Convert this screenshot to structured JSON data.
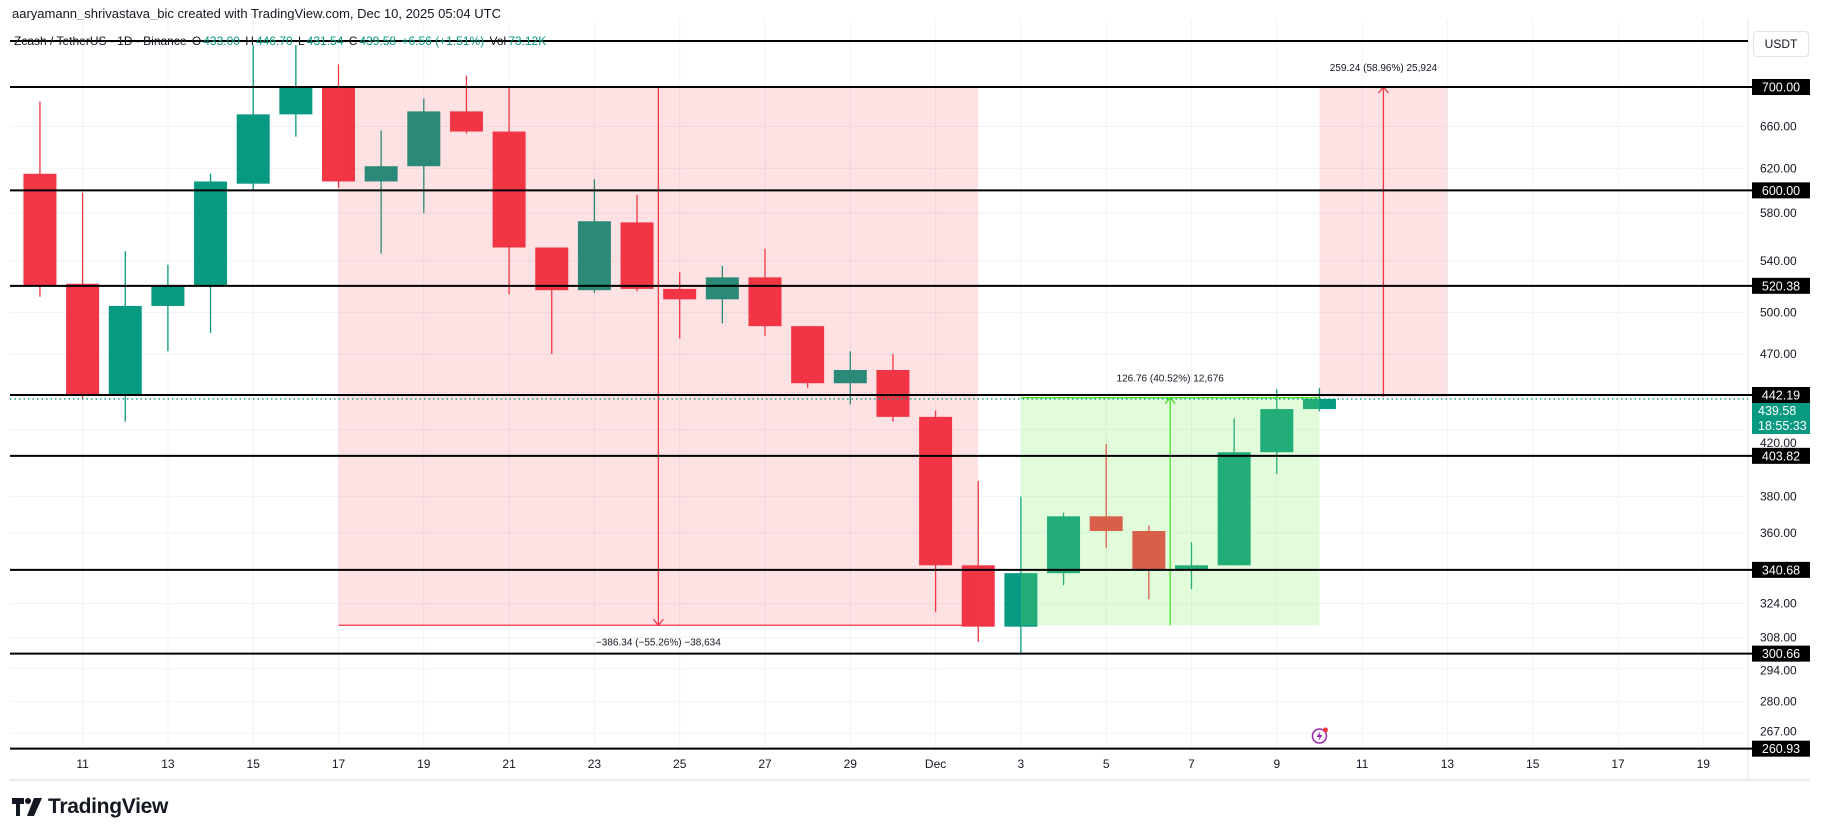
{
  "attribution": "aaryamann_shrivastava_bic created with TradingView.com, Dec 10, 2025 05:04 UTC",
  "legend": {
    "symbol": "Zcash / TetherUS · 1D · Binance",
    "o_label": "O",
    "o": "433.00",
    "h_label": "H",
    "h": "446.70",
    "l_label": "L",
    "l": "431.54",
    "c_label": "C",
    "c": "439.58",
    "change": "+6.56 (+1.51%)",
    "vol_label": "Vol",
    "vol": "73.12K"
  },
  "currency_button": "USDT",
  "logo_text": "TradingView",
  "colors": {
    "up": "#089981",
    "down": "#f23645",
    "level": "#000000",
    "measure_down_fill": "#f23645",
    "measure_up_fill": "#7cf05a",
    "measure_up_line": "#4ce02a",
    "current_price": "#089981",
    "alert_icon": "#9c27b0"
  },
  "icons": {
    "alert": "lightning-alert-icon"
  },
  "chart_data": {
    "type": "candlestick",
    "interval": "1D",
    "y_scale": "log",
    "ylim": [
      260,
      745
    ],
    "xlim": [
      "2025-11-10",
      "2025-12-20"
    ],
    "grid": true,
    "candles": [
      [
        "2025-11-10",
        615,
        685,
        512,
        520
      ],
      [
        "2025-11-11",
        522,
        598,
        440,
        442
      ],
      [
        "2025-11-12",
        442,
        548,
        425,
        505
      ],
      [
        "2025-11-13",
        505,
        537,
        472,
        520
      ],
      [
        "2025-11-14",
        520,
        615,
        485,
        608
      ],
      [
        "2025-11-15",
        606,
        745,
        600,
        672
      ],
      [
        "2025-11-16",
        672,
        745,
        650,
        700
      ],
      [
        "2025-11-17",
        700,
        724,
        602,
        608
      ],
      [
        "2025-11-18",
        608,
        656,
        546,
        622
      ],
      [
        "2025-11-19",
        622,
        688,
        580,
        675
      ],
      [
        "2025-11-20",
        675,
        712,
        653,
        655
      ],
      [
        "2025-11-21",
        655,
        700,
        514,
        551
      ],
      [
        "2025-11-22",
        551,
        551,
        470,
        517
      ],
      [
        "2025-11-23",
        517,
        610,
        515,
        573
      ],
      [
        "2025-11-24",
        572,
        596,
        516,
        518
      ],
      [
        "2025-11-25",
        518,
        531,
        481,
        510
      ],
      [
        "2025-11-26",
        510,
        536,
        492,
        527
      ],
      [
        "2025-11-27",
        527,
        550,
        483,
        490
      ],
      [
        "2025-11-28",
        490,
        490,
        447,
        450
      ],
      [
        "2025-11-29",
        450,
        472,
        436,
        459
      ],
      [
        "2025-11-30",
        459,
        470,
        425,
        428
      ],
      [
        "2025-12-01",
        428,
        432,
        320,
        343
      ],
      [
        "2025-12-02",
        343,
        389,
        306,
        313
      ],
      [
        "2025-12-03",
        313,
        380,
        301,
        339
      ],
      [
        "2025-12-04",
        339,
        371,
        333,
        369
      ],
      [
        "2025-12-05",
        369,
        411,
        352,
        361
      ],
      [
        "2025-12-06",
        361,
        364,
        326,
        341
      ],
      [
        "2025-12-07",
        341,
        355,
        331,
        343
      ],
      [
        "2025-12-08",
        343,
        427,
        343,
        406
      ],
      [
        "2025-12-09",
        406,
        446,
        393,
        433
      ],
      [
        "2025-12-10",
        433.0,
        446.7,
        431.54,
        439.58
      ]
    ],
    "horizontal_levels": [
      {
        "value": 750,
        "label": ""
      },
      {
        "value": 700,
        "label": "700.00"
      },
      {
        "value": 600,
        "label": "600.00"
      },
      {
        "value": 520.38,
        "label": "520.38"
      },
      {
        "value": 442.19,
        "label": "442.19"
      },
      {
        "value": 403.82,
        "label": "403.82"
      },
      {
        "value": 340.68,
        "label": "340.68"
      },
      {
        "value": 300.66,
        "label": "300.66"
      },
      {
        "value": 260.93,
        "label": "260.93"
      }
    ],
    "y_ticks": [
      {
        "value": 660,
        "label": "660.00"
      },
      {
        "value": 620,
        "label": "620.00"
      },
      {
        "value": 580,
        "label": "580.00"
      },
      {
        "value": 540,
        "label": "540.00"
      },
      {
        "value": 500,
        "label": "500.00"
      },
      {
        "value": 470,
        "label": "470.00"
      },
      {
        "value": 420,
        "label": "420.00"
      },
      {
        "value": 380,
        "label": "380.00"
      },
      {
        "value": 360,
        "label": "360.00"
      },
      {
        "value": 324,
        "label": "324.00"
      },
      {
        "value": 308,
        "label": "308.00"
      },
      {
        "value": 294,
        "label": "294.00"
      },
      {
        "value": 280,
        "label": "280.00"
      },
      {
        "value": 267,
        "label": "267.00"
      }
    ],
    "x_ticks": [
      {
        "date": "2025-11-11",
        "label": "11"
      },
      {
        "date": "2025-11-13",
        "label": "13"
      },
      {
        "date": "2025-11-15",
        "label": "15"
      },
      {
        "date": "2025-11-17",
        "label": "17"
      },
      {
        "date": "2025-11-19",
        "label": "19"
      },
      {
        "date": "2025-11-21",
        "label": "21"
      },
      {
        "date": "2025-11-23",
        "label": "23"
      },
      {
        "date": "2025-11-25",
        "label": "25"
      },
      {
        "date": "2025-11-27",
        "label": "27"
      },
      {
        "date": "2025-11-29",
        "label": "29"
      },
      {
        "date": "2025-12-01",
        "label": "Dec"
      },
      {
        "date": "2025-12-03",
        "label": "3"
      },
      {
        "date": "2025-12-05",
        "label": "5"
      },
      {
        "date": "2025-12-07",
        "label": "7"
      },
      {
        "date": "2025-12-09",
        "label": "9"
      },
      {
        "date": "2025-12-11",
        "label": "11"
      },
      {
        "date": "2025-12-13",
        "label": "13"
      },
      {
        "date": "2025-12-15",
        "label": "15"
      },
      {
        "date": "2025-12-17",
        "label": "17"
      },
      {
        "date": "2025-12-19",
        "label": "19"
      }
    ],
    "current_price": {
      "value": 439.58,
      "label": "439.58",
      "countdown": "18:55:33"
    },
    "measurements": [
      {
        "kind": "down",
        "from_date": "2025-11-17",
        "to_date": "2025-12-02",
        "from_price": 700,
        "to_price": 313.66,
        "label": "−386.34 (−55.26%) −38,634"
      },
      {
        "kind": "up",
        "from_date": "2025-12-03",
        "to_date": "2025-12-10",
        "from_price": 313.66,
        "to_price": 440.42,
        "label": "126.76 (40.52%) 12,676"
      },
      {
        "kind": "up-red",
        "from_date": "2025-12-10",
        "to_date": "2025-12-13",
        "from_price": 440.76,
        "to_price": 700,
        "label": "259.24 (58.96%) 25,924"
      }
    ],
    "alert_marker_date": "2025-12-10"
  }
}
